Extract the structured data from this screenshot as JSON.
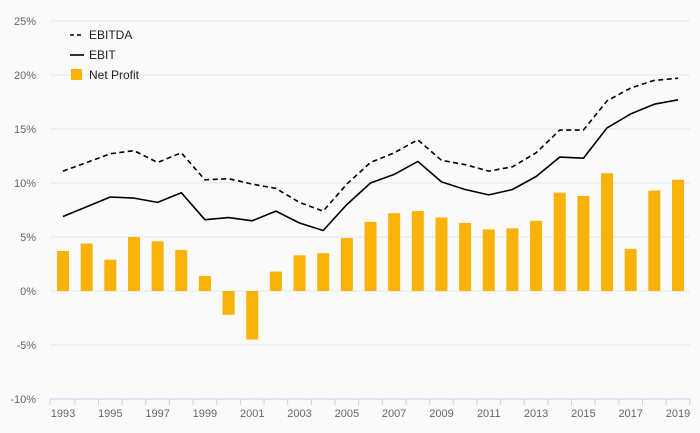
{
  "chart_data": {
    "type": "bar",
    "x": [
      1993,
      1994,
      1995,
      1996,
      1997,
      1998,
      1999,
      2000,
      2001,
      2002,
      2003,
      2004,
      2005,
      2006,
      2007,
      2008,
      2009,
      2010,
      2011,
      2012,
      2013,
      2014,
      2015,
      2016,
      2017,
      2018,
      2019
    ],
    "x_tick_labels": [
      "1993",
      "1995",
      "1997",
      "1999",
      "2001",
      "2003",
      "2005",
      "2007",
      "2009",
      "2011",
      "2013",
      "2015",
      "2017",
      "2019"
    ],
    "ylim": [
      -10,
      25
    ],
    "y_tick_labels": [
      "25%",
      "20%",
      "15%",
      "10%",
      "5%",
      "0%",
      "-5%",
      "-10%"
    ],
    "grid": true,
    "legend_position": "top-left",
    "series": [
      {
        "name": "EBITDA",
        "kind": "line",
        "style": "dashed",
        "color": "#000000",
        "values": [
          11.1,
          11.9,
          12.7,
          13.0,
          11.9,
          12.8,
          10.3,
          10.4,
          9.9,
          9.5,
          8.2,
          7.4,
          9.9,
          11.9,
          12.8,
          14.0,
          12.1,
          11.7,
          11.1,
          11.5,
          12.8,
          14.9,
          14.9,
          17.6,
          18.8,
          19.5,
          19.7
        ]
      },
      {
        "name": "EBIT",
        "kind": "line",
        "style": "solid",
        "color": "#000000",
        "values": [
          6.9,
          7.8,
          8.7,
          8.6,
          8.2,
          9.1,
          6.6,
          6.8,
          6.5,
          7.4,
          6.3,
          5.6,
          8.0,
          10.0,
          10.8,
          12.0,
          10.1,
          9.4,
          8.9,
          9.4,
          10.6,
          12.4,
          12.3,
          15.1,
          16.4,
          17.3,
          17.7
        ]
      },
      {
        "name": "Net Profit",
        "kind": "bar",
        "color": "#f9b208",
        "values": [
          3.7,
          4.4,
          2.9,
          5.0,
          4.6,
          3.8,
          1.4,
          -2.2,
          -4.5,
          1.8,
          3.3,
          3.5,
          4.9,
          6.4,
          7.2,
          7.4,
          6.8,
          6.3,
          5.7,
          5.8,
          6.5,
          9.1,
          8.8,
          10.9,
          3.9,
          9.3,
          10.3
        ]
      }
    ]
  }
}
